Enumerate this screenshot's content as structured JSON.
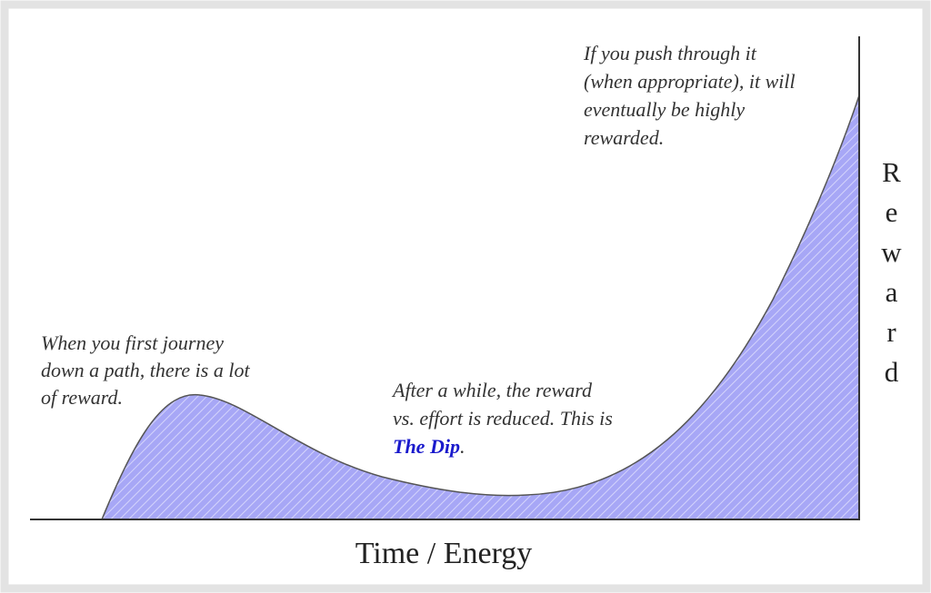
{
  "annotations": [
    {
      "lines": [
        "When you first journey",
        "down a path, there is a lot",
        "of reward."
      ]
    },
    {
      "lines": [
        "After a while, the reward",
        "vs. effort is reduced. This is"
      ],
      "highlight": "The Dip",
      "after": "."
    },
    {
      "lines": [
        "If you push through it",
        "(when appropriate), it will",
        "eventually be highly",
        "rewarded."
      ]
    }
  ],
  "x_axis_label": "Time / Energy",
  "y_axis_label": "Reward"
}
